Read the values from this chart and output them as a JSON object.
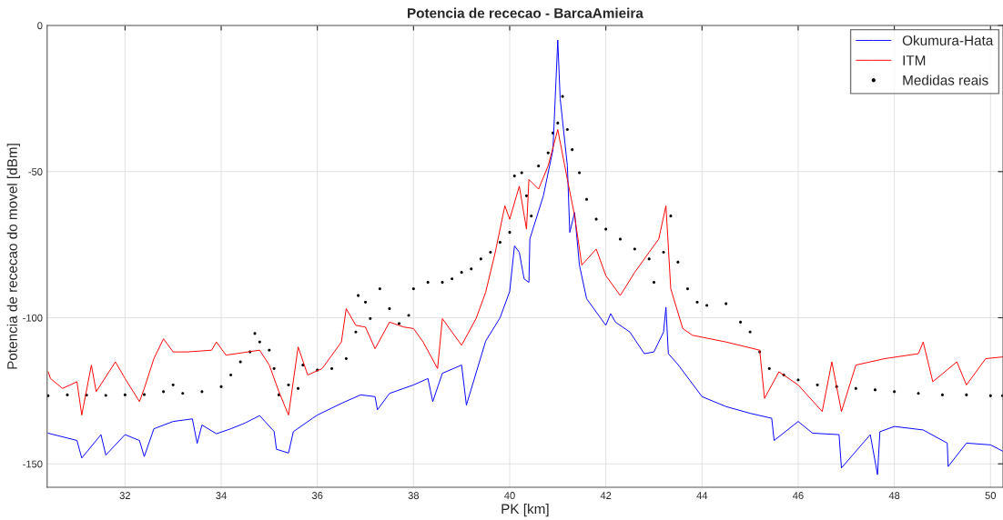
{
  "chart_data": {
    "type": "line",
    "title": "Potencia de rececao - BarcaAmieira",
    "xlabel": "PK [km]",
    "ylabel": "Potencia de rececao do movel [dBm]",
    "xlim": [
      30.38,
      50.26
    ],
    "xticks": [
      32,
      34,
      36,
      38,
      40,
      42,
      44,
      46,
      48,
      50
    ],
    "ylim": [
      -158,
      0
    ],
    "yticks": [
      -150,
      -100,
      -50,
      0
    ],
    "grid": true,
    "legend": "top right",
    "series": [
      {
        "name": "Okumura-Hata",
        "color": "#0000ff",
        "x": [
          30.4,
          31.0,
          31.1,
          31.5,
          31.6,
          32.0,
          32.3,
          32.4,
          32.6,
          33.0,
          33.4,
          33.5,
          33.6,
          33.9,
          34.2,
          34.5,
          34.8,
          35.1,
          35.15,
          35.4,
          35.5,
          35.9,
          36.0,
          36.5,
          36.9,
          37.2,
          37.25,
          37.5,
          38.0,
          38.3,
          38.4,
          38.6,
          39.0,
          39.1,
          39.5,
          39.8,
          40.0,
          40.1,
          40.2,
          40.3,
          40.4,
          40.42,
          40.7,
          40.9,
          41.0,
          41.05,
          41.2,
          41.25,
          41.35,
          41.45,
          41.6,
          42.0,
          42.1,
          42.2,
          42.5,
          42.8,
          43.0,
          43.2,
          43.25,
          43.3,
          43.5,
          44.0,
          44.5,
          45.0,
          45.45,
          45.5,
          46.0,
          46.3,
          46.85,
          46.9,
          47.5,
          47.65,
          47.7,
          48.0,
          48.6,
          49.1,
          49.12,
          49.5,
          50.0,
          50.26
        ],
        "values": [
          -139.5,
          -142,
          -148,
          -140,
          -147,
          -140,
          -142,
          -147.5,
          -138,
          -135.5,
          -134.6,
          -143,
          -136.7,
          -139.7,
          -138,
          -136,
          -133.5,
          -138.9,
          -145,
          -146.3,
          -139,
          -134.4,
          -133.3,
          -129.3,
          -126.4,
          -127,
          -131.5,
          -125.9,
          -123,
          -120.8,
          -128.7,
          -119,
          -116.2,
          -129.9,
          -108,
          -100,
          -91,
          -75.4,
          -77.6,
          -86.7,
          -87.9,
          -73,
          -58.3,
          -42.5,
          -5,
          -25,
          -48,
          -70.8,
          -64,
          -82,
          -93.5,
          -102.6,
          -98.6,
          -101.5,
          -104.9,
          -112.3,
          -111.7,
          -104.9,
          -96.4,
          -112.3,
          -116,
          -127,
          -130.4,
          -132.7,
          -134.4,
          -142,
          -135.5,
          -139.5,
          -140,
          -151.4,
          -140,
          -153.7,
          -139,
          -137.2,
          -138.4,
          -142.9,
          -150.9,
          -142.9,
          -143.5,
          -145.7
        ]
      },
      {
        "name": "ITM",
        "color": "#ff0000",
        "x": [
          30.4,
          30.45,
          30.7,
          31.0,
          31.1,
          31.3,
          31.4,
          31.8,
          32.0,
          32.3,
          32.4,
          32.6,
          32.8,
          33.0,
          33.3,
          33.8,
          33.9,
          34.1,
          34.8,
          35.0,
          35.2,
          35.4,
          35.6,
          35.8,
          36.1,
          36.5,
          36.6,
          36.8,
          37.0,
          37.2,
          37.5,
          37.8,
          38.0,
          38.2,
          38.5,
          38.6,
          38.8,
          39.0,
          39.3,
          39.5,
          39.7,
          39.9,
          40.0,
          40.2,
          40.35,
          40.4,
          40.6,
          40.8,
          41.0,
          41.2,
          41.35,
          41.5,
          41.8,
          42.0,
          42.3,
          42.6,
          42.9,
          43.1,
          43.25,
          43.35,
          43.6,
          43.8,
          44.5,
          45.2,
          45.3,
          45.6,
          46.0,
          46.5,
          46.7,
          46.9,
          47.2,
          47.8,
          48.5,
          48.6,
          48.8,
          49.3,
          49.5,
          49.9,
          50.26
        ],
        "values": [
          -118.5,
          -120.8,
          -124.2,
          -121.9,
          -133.3,
          -116.2,
          -125.3,
          -115.1,
          -120.8,
          -128.7,
          -124.2,
          -114,
          -107.2,
          -111.7,
          -111.7,
          -111.1,
          -108.3,
          -112.8,
          -111.1,
          -116.2,
          -125.3,
          -133.3,
          -110,
          -119.6,
          -117.4,
          -108.3,
          -96.9,
          -102.6,
          -103.2,
          -110.6,
          -101.5,
          -103.2,
          -103.7,
          -108.3,
          -117.4,
          -100.3,
          -104.9,
          -109.4,
          -100.3,
          -91.3,
          -77.6,
          -61.7,
          -66.3,
          -55,
          -69.7,
          -52.7,
          -56,
          -48,
          -35.6,
          -52.7,
          -65,
          -82,
          -76.5,
          -85.6,
          -92.4,
          -84.5,
          -77.6,
          -73.1,
          -61.7,
          -90.1,
          -103.7,
          -106,
          -108.3,
          -111.1,
          -127.6,
          -118.5,
          -123,
          -132.1,
          -115.1,
          -132.1,
          -116.2,
          -114,
          -112.3,
          -108.3,
          -121.9,
          -115.1,
          -123,
          -114,
          -113.4
        ]
      },
      {
        "name": "Medidas reais",
        "type": "scatter",
        "color": "#000000",
        "marker": "circle",
        "x": [
          30.4,
          30.8,
          31.2,
          31.6,
          32.0,
          32.4,
          32.8,
          33.0,
          33.2,
          33.6,
          34.0,
          34.2,
          34.4,
          34.6,
          34.7,
          34.8,
          35.0,
          35.1,
          35.2,
          35.4,
          35.6,
          35.7,
          36.0,
          36.3,
          36.6,
          36.8,
          36.85,
          37.0,
          37.1,
          37.3,
          37.5,
          37.7,
          37.9,
          38.0,
          38.3,
          38.6,
          38.8,
          39.0,
          39.2,
          39.4,
          39.6,
          39.8,
          40.0,
          40.1,
          40.25,
          40.35,
          40.45,
          40.6,
          40.8,
          40.9,
          41.0,
          41.1,
          41.2,
          41.3,
          41.45,
          41.6,
          41.8,
          42.0,
          42.3,
          42.6,
          42.9,
          43.0,
          43.2,
          43.35,
          43.5,
          43.7,
          43.9,
          44.1,
          44.5,
          44.8,
          45.0,
          45.2,
          45.4,
          45.7,
          46.0,
          46.4,
          46.8,
          47.2,
          47.6,
          48.0,
          48.5,
          49.0,
          49.5,
          50.0,
          50.25
        ],
        "values": [
          -126.7,
          -126.4,
          -126.5,
          -126.6,
          -126.4,
          -126.3,
          -125.3,
          -123,
          -125.9,
          -125.3,
          -123.6,
          -119.6,
          -115.1,
          -111.7,
          -105.4,
          -108.3,
          -111.1,
          -117.4,
          -126.4,
          -123,
          -124.2,
          -116.2,
          -117.9,
          -117.4,
          -114,
          -104.9,
          -92.4,
          -94.7,
          -100.3,
          -90.1,
          -96.9,
          -102,
          -99.2,
          -90.1,
          -87.9,
          -87.9,
          -86.7,
          -84.5,
          -83.3,
          -79.9,
          -77.6,
          -74.2,
          -70.8,
          -51.5,
          -50.4,
          -58.3,
          -65.2,
          -48.1,
          -43.6,
          -36.8,
          -33.4,
          -24.3,
          -35.6,
          -42.5,
          -50.4,
          -59.5,
          -66.3,
          -69.7,
          -73.1,
          -76.5,
          -79.9,
          -87.9,
          -77.6,
          -65.2,
          -81,
          -90.1,
          -94.7,
          -95.8,
          -95.2,
          -101.5,
          -104.9,
          -111.7,
          -117.4,
          -119.6,
          -121.3,
          -123,
          -123.6,
          -124.2,
          -124.7,
          -125.3,
          -125.9,
          -126.4,
          -126.4,
          -126.7,
          -126.7
        ]
      }
    ]
  }
}
